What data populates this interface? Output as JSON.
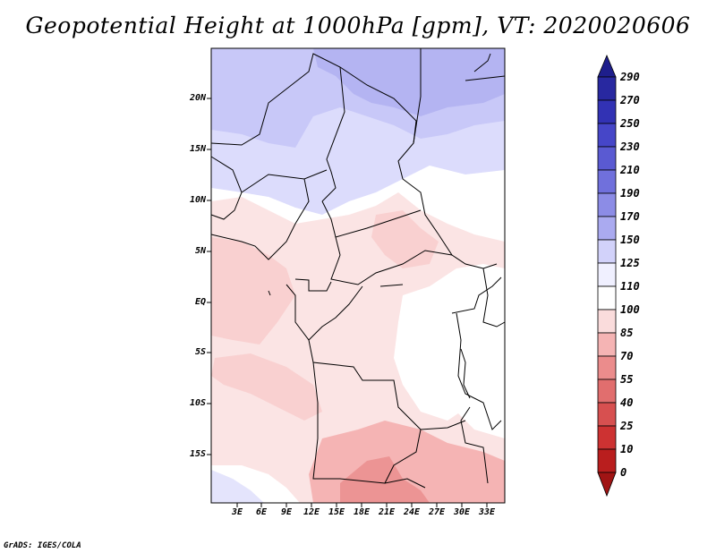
{
  "title": "Geopotential Height at 1000hPa [gpm], VT: 2020020606",
  "map": {
    "lat_labels": [
      "20N",
      "15N",
      "10N",
      "5N",
      "EQ",
      "5S",
      "10S",
      "15S"
    ],
    "lon_labels": [
      "3E",
      "6E",
      "9E",
      "12E",
      "15E",
      "18E",
      "21E",
      "24E",
      "27E",
      "30E",
      "33E"
    ]
  },
  "colorbar": {
    "levels": [
      "290",
      "270",
      "250",
      "230",
      "210",
      "190",
      "170",
      "150",
      "125",
      "110",
      "100",
      "85",
      "70",
      "55",
      "40",
      "25",
      "10",
      "0"
    ],
    "colors_top_to_bottom": [
      "#1e1e8c",
      "#2828a0",
      "#3232b4",
      "#4646c8",
      "#5a5ad2",
      "#7070dc",
      "#8c8ce6",
      "#aaaaf0",
      "#d2d2fa",
      "#ffffff",
      "#fadcdc",
      "#f5b4b4",
      "#eb8c8c",
      "#e16e6e",
      "#d75050",
      "#cd3232",
      "#b91e1e",
      "#a01414"
    ]
  },
  "footer": "GrADS: IGES/COLA"
}
